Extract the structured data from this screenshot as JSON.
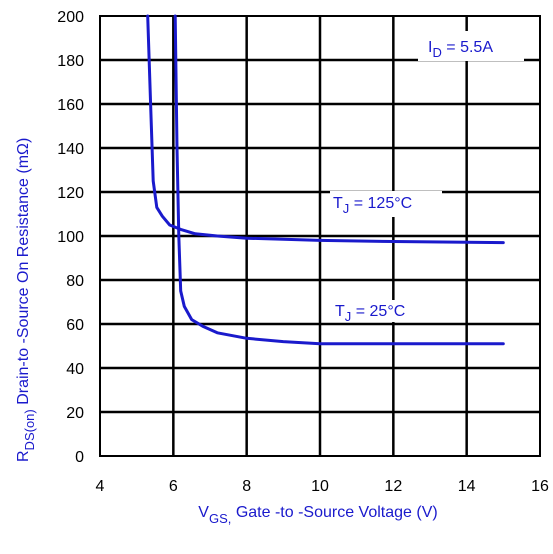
{
  "chart_data": {
    "type": "line",
    "title": "",
    "xlabel": {
      "main": "V",
      "sub": "GS,",
      "rest": " Gate -to -Source Voltage  (V)"
    },
    "ylabel": {
      "main": "R",
      "sub": "DS(on)",
      "rest": "  Drain-to -Source On Resistance (mΩ)"
    },
    "xlim": [
      4,
      16
    ],
    "ylim": [
      0,
      200
    ],
    "xticks": [
      4,
      6,
      8,
      10,
      12,
      14,
      16
    ],
    "yticks": [
      0,
      20,
      40,
      60,
      80,
      100,
      120,
      140,
      160,
      180,
      200
    ],
    "grid": true,
    "line_color": "#1a1acc",
    "series": [
      {
        "annotation": {
          "main": "T",
          "sub": "J",
          "rest": " = 125°C"
        },
        "x": [
          5.3,
          5.38,
          5.45,
          5.55,
          5.7,
          5.9,
          6.2,
          6.6,
          7.2,
          8,
          9,
          10,
          12,
          15
        ],
        "y": [
          200,
          160,
          125,
          113,
          109,
          105,
          103,
          101,
          100,
          99,
          98.5,
          98,
          97.5,
          97
        ]
      },
      {
        "annotation": {
          "main": "T",
          "sub": "J",
          "rest": " = 25°C"
        },
        "x": [
          6.05,
          6.1,
          6.15,
          6.2,
          6.3,
          6.5,
          6.8,
          7.2,
          8,
          9,
          10,
          12,
          15
        ],
        "y": [
          200,
          140,
          100,
          75,
          68,
          62,
          59,
          56,
          53.5,
          52,
          51,
          51,
          51
        ]
      }
    ],
    "annotations": [
      {
        "main": "I",
        "sub": "D",
        "rest": " = 5.5A"
      }
    ]
  }
}
